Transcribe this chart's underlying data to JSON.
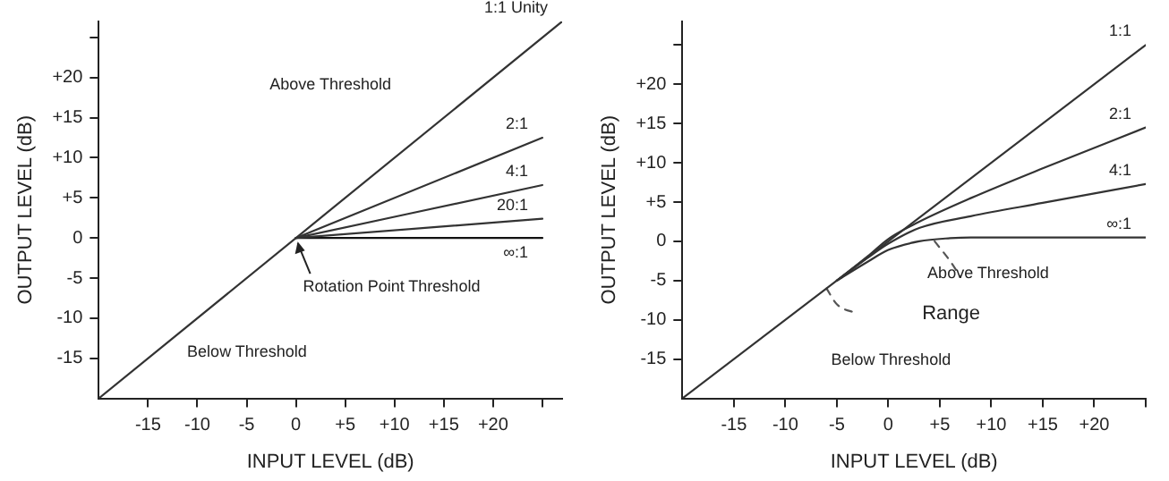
{
  "chart_data": [
    {
      "type": "line",
      "xlabel": "INPUT LEVEL (dB)",
      "ylabel": "OUTPUT LEVEL (dB)",
      "xlim": [
        -20,
        27
      ],
      "ylim": [
        -20,
        27
      ],
      "xticks": [
        -15,
        -10,
        -5,
        0,
        {
          "value": 5,
          "label": "+5"
        },
        {
          "value": 10,
          "label": "+10"
        },
        {
          "value": 15,
          "label": "+15"
        },
        {
          "value": 20,
          "label": "+20"
        },
        {
          "value": 25,
          "label": null
        }
      ],
      "yticks": [
        -15,
        -10,
        -5,
        0,
        {
          "value": 5,
          "label": "+5"
        },
        {
          "value": 10,
          "label": "+10"
        },
        {
          "value": 15,
          "label": "+15"
        },
        {
          "value": 20,
          "label": "+20"
        },
        {
          "value": 25,
          "label": null
        }
      ],
      "grid": false,
      "legend": false,
      "marker": "none",
      "series": [
        {
          "name": "1:1 Unity",
          "color": "#333333",
          "x": [
            -20,
            27
          ],
          "values": [
            -20,
            27
          ]
        },
        {
          "name": "2:1",
          "color": "#333333",
          "x": [
            0,
            25
          ],
          "values": [
            0,
            12.5
          ]
        },
        {
          "name": "4:1",
          "color": "#333333",
          "x": [
            0,
            25
          ],
          "values": [
            0,
            6.6
          ]
        },
        {
          "name": "20:1",
          "color": "#333333",
          "x": [
            0,
            25
          ],
          "values": [
            0,
            2.4
          ]
        },
        {
          "name": "∞:1",
          "color": "#111111",
          "x": [
            0,
            25
          ],
          "values": [
            0,
            0
          ]
        }
      ],
      "annotations": [
        "Above Threshold",
        "Below Threshold",
        {
          "text": "Rotation Point Threshold",
          "x": 0,
          "y": 0
        }
      ]
    },
    {
      "type": "line",
      "xlabel": "INPUT LEVEL (dB)",
      "ylabel": "OUTPUT LEVEL (dB)",
      "xlim": [
        -20,
        25
      ],
      "ylim": [
        -20,
        28
      ],
      "xticks": [
        -15,
        -10,
        -5,
        0,
        {
          "value": 5,
          "label": "+5"
        },
        {
          "value": 10,
          "label": "+10"
        },
        {
          "value": 15,
          "label": "+15"
        },
        {
          "value": 20,
          "label": "+20"
        },
        {
          "value": 25,
          "label": null
        }
      ],
      "yticks": [
        -15,
        -10,
        -5,
        0,
        {
          "value": 5,
          "label": "+5"
        },
        {
          "value": 10,
          "label": "+10"
        },
        {
          "value": 15,
          "label": "+15"
        },
        {
          "value": 20,
          "label": "+20"
        },
        {
          "value": 25,
          "label": null
        }
      ],
      "grid": false,
      "legend": false,
      "marker": "none",
      "series": [
        {
          "name": "1:1",
          "color": "#333333",
          "x": [
            -20,
            25
          ],
          "values": [
            -20,
            25
          ]
        },
        {
          "name": "2:1",
          "color": "#333333",
          "x": [
            -5,
            -2,
            0,
            3,
            8,
            15,
            25
          ],
          "values": [
            -5,
            -1.9,
            0.3,
            2.5,
            5.5,
            9.3,
            14.5
          ]
        },
        {
          "name": "4:1",
          "color": "#333333",
          "x": [
            -5,
            -2,
            0,
            3,
            8,
            15,
            25
          ],
          "values": [
            -5,
            -2.1,
            -0.3,
            1.7,
            3.2,
            4.9,
            7.3
          ]
        },
        {
          "name": "∞:1",
          "color": "#333333",
          "x": [
            -5,
            -2,
            0,
            3,
            6,
            8,
            25
          ],
          "values": [
            -5,
            -2.6,
            -1.1,
            0,
            0.4,
            0.5,
            0.5
          ]
        },
        {
          "color": "#555555",
          "line_style": "dashed",
          "x": [
            -6,
            -5,
            -3
          ],
          "values": [
            -6,
            -8,
            -9.2
          ]
        },
        {
          "color": "#555555",
          "line_style": "dashed",
          "x": [
            4.5,
            6,
            7
          ],
          "values": [
            0,
            -2.5,
            -4.5
          ]
        }
      ],
      "annotations": [
        "Above Threshold",
        "Range",
        "Below Threshold"
      ]
    }
  ]
}
